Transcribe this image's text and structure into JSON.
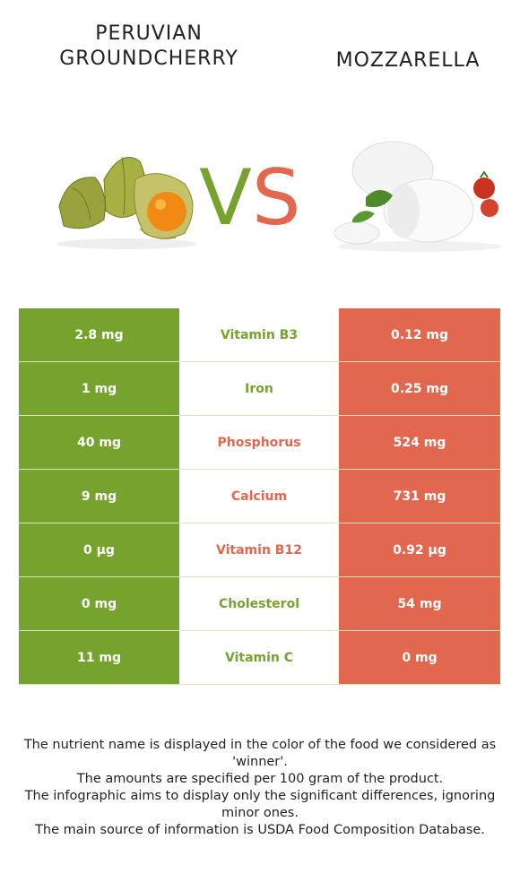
{
  "header": {
    "left_title_line1": "PERUVIAN",
    "left_title_line2": "GROUNDCHERRY",
    "right_title": "MOZZARELLA",
    "vs_v": "V",
    "vs_s": "S"
  },
  "colors": {
    "left_food": "#76a32e",
    "right_food": "#e1684f"
  },
  "rows": [
    {
      "left": "2.8 mg",
      "nutrient": "Vitamin B3",
      "right": "0.12 mg",
      "winner": "left"
    },
    {
      "left": "1 mg",
      "nutrient": "Iron",
      "right": "0.25 mg",
      "winner": "left"
    },
    {
      "left": "40 mg",
      "nutrient": "Phosphorus",
      "right": "524 mg",
      "winner": "right"
    },
    {
      "left": "9 mg",
      "nutrient": "Calcium",
      "right": "731 mg",
      "winner": "right"
    },
    {
      "left": "0 µg",
      "nutrient": "Vitamin B12",
      "right": "0.92 µg",
      "winner": "right"
    },
    {
      "left": "0 mg",
      "nutrient": "Cholesterol",
      "right": "54 mg",
      "winner": "left"
    },
    {
      "left": "11 mg",
      "nutrient": "Vitamin C",
      "right": "0 mg",
      "winner": "left"
    }
  ],
  "footer": {
    "line1": "The nutrient name is displayed in the color of the food we considered as 'winner'.",
    "line2": "The amounts are specified per 100 gram of the product.",
    "line3": "The infographic aims to display only the significant differences, ignoring minor ones.",
    "line4": "The main source of information is USDA Food Composition Database."
  }
}
